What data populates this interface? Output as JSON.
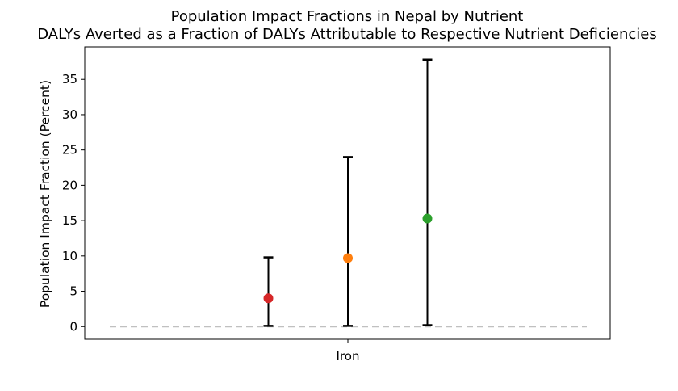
{
  "chart_data": {
    "type": "scatter",
    "title": "Population Impact Fractions in Nepal by Nutrient",
    "subtitle": "DALYs Averted as a Fraction of DALYs Attributable to Respective Nutrient Deficiencies",
    "xlabel": "",
    "ylabel": "Population Impact Fraction (Percent)",
    "categories": [
      "Iron"
    ],
    "ylim": [
      -1.8,
      39.6
    ],
    "yticks": [
      0,
      5,
      10,
      15,
      20,
      25,
      30,
      35
    ],
    "grid": false,
    "legend": "none",
    "reference_line": {
      "y": 0,
      "style": "dashed",
      "color": "#c0c0c0"
    },
    "series": [
      {
        "category": "Iron",
        "offset": -1,
        "value": 4.0,
        "lower": 0.1,
        "upper": 9.8,
        "color": "#d62728"
      },
      {
        "category": "Iron",
        "offset": 0,
        "value": 9.7,
        "lower": 0.1,
        "upper": 24.0,
        "color": "#ff7f0e"
      },
      {
        "category": "Iron",
        "offset": 1,
        "value": 15.3,
        "lower": 0.2,
        "upper": 37.8,
        "color": "#2ca02c"
      }
    ]
  }
}
